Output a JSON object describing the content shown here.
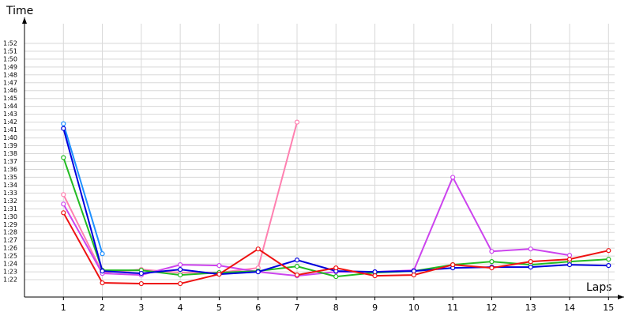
{
  "chart_data": {
    "type": "line",
    "y_label": "Time",
    "x_label": "Laps",
    "x": [
      1,
      2,
      3,
      4,
      5,
      6,
      7,
      8,
      9,
      10,
      11,
      12,
      13,
      14,
      15
    ],
    "xlim": [
      0,
      15.4
    ],
    "xticks": [
      1,
      2,
      3,
      4,
      5,
      6,
      7,
      8,
      9,
      10,
      11,
      12,
      13,
      14,
      15
    ],
    "ylim": [
      79.8,
      115.3
    ],
    "yticks": [
      {
        "value": 82,
        "label": "1:22"
      },
      {
        "value": 83,
        "label": "1:23"
      },
      {
        "value": 84,
        "label": "1:24"
      },
      {
        "value": 85,
        "label": "1:25"
      },
      {
        "value": 86,
        "label": "1:26"
      },
      {
        "value": 87,
        "label": "1:27"
      },
      {
        "value": 88,
        "label": "1:28"
      },
      {
        "value": 89,
        "label": "1:29"
      },
      {
        "value": 90,
        "label": "1:30"
      },
      {
        "value": 91,
        "label": "1:31"
      },
      {
        "value": 92,
        "label": "1:32"
      },
      {
        "value": 93,
        "label": "1:33"
      },
      {
        "value": 94,
        "label": "1:34"
      },
      {
        "value": 95,
        "label": "1:35"
      },
      {
        "value": 96,
        "label": "1:36"
      },
      {
        "value": 97,
        "label": "1:37"
      },
      {
        "value": 98,
        "label": "1:38"
      },
      {
        "value": 99,
        "label": "1:39"
      },
      {
        "value": 100,
        "label": "1:40"
      },
      {
        "value": 101,
        "label": "1:41"
      },
      {
        "value": 102,
        "label": "1:42"
      },
      {
        "value": 103,
        "label": "1:43"
      },
      {
        "value": 104,
        "label": "1:44"
      },
      {
        "value": 105,
        "label": "1:45"
      },
      {
        "value": 106,
        "label": "1:46"
      },
      {
        "value": 107,
        "label": "1:47"
      },
      {
        "value": 108,
        "label": "1:48"
      },
      {
        "value": 109,
        "label": "1:49"
      },
      {
        "value": 110,
        "label": "1:50"
      },
      {
        "value": 111,
        "label": "1:51"
      },
      {
        "value": 112,
        "label": "1:52"
      }
    ],
    "grid": true,
    "series": [
      {
        "color": "#ff80b0",
        "values": [
          92.8,
          82.9,
          83.3,
          82.9,
          82.9,
          83.5,
          102,
          null,
          null,
          null,
          null,
          null,
          null,
          null,
          null
        ]
      },
      {
        "color": "#1e90ff",
        "values": [
          101.8,
          85.3,
          null,
          null,
          null,
          null,
          null,
          null,
          null,
          null,
          null,
          null,
          null,
          null,
          null
        ]
      },
      {
        "color": "#cc44ee",
        "values": [
          91.6,
          82.8,
          82.6,
          83.9,
          83.8,
          83.0,
          82.5,
          83.0,
          83.0,
          83.2,
          95.0,
          85.6,
          85.9,
          85.1,
          null
        ]
      },
      {
        "color": "#22bb22",
        "values": [
          97.5,
          83.2,
          83.2,
          82.6,
          82.9,
          83.1,
          83.7,
          82.4,
          82.9,
          83.1,
          83.9,
          84.3,
          83.9,
          84.3,
          84.6
        ]
      },
      {
        "color": "#0000dd",
        "values": [
          101.2,
          83.1,
          82.8,
          83.3,
          82.7,
          83.0,
          84.5,
          83.1,
          83.0,
          83.1,
          83.5,
          83.6,
          83.6,
          83.9,
          83.8
        ]
      },
      {
        "color": "#ee1111",
        "values": [
          90.5,
          81.6,
          81.5,
          81.5,
          82.7,
          85.9,
          82.6,
          83.5,
          82.5,
          82.6,
          83.9,
          83.5,
          84.3,
          84.6,
          85.7
        ]
      }
    ]
  }
}
